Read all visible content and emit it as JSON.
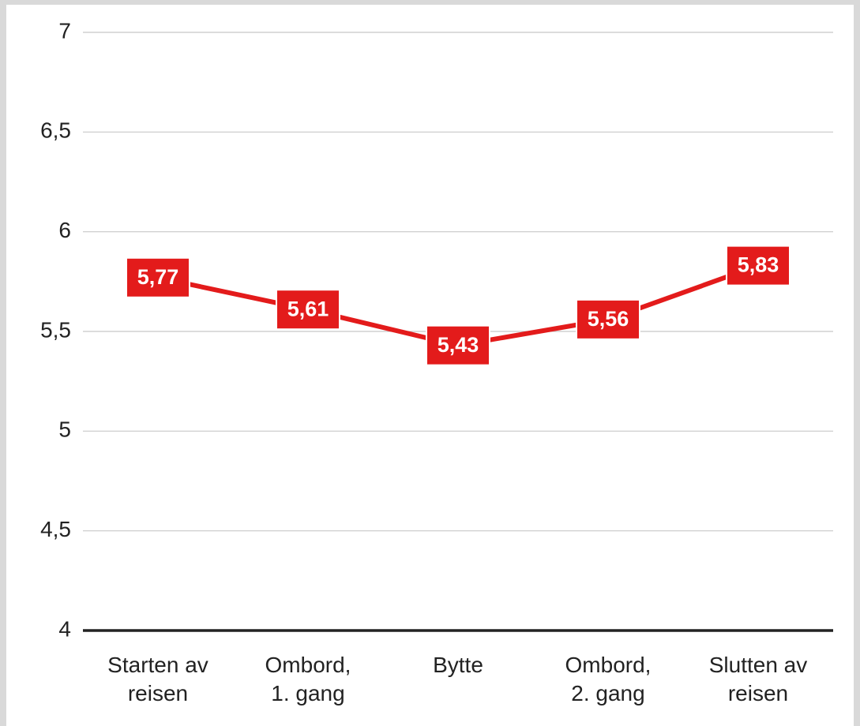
{
  "chart_data": {
    "type": "line",
    "categories": [
      "Starten av\nreisen",
      "Ombord,\n1. gang",
      "Bytte",
      "Ombord,\n2. gang",
      "Slutten av\nreisen"
    ],
    "series": [
      {
        "color": "#e31b1b",
        "values": [
          5.77,
          5.61,
          5.43,
          5.56,
          5.83
        ],
        "value_labels": [
          "5,77",
          "5,61",
          "5,43",
          "5,56",
          "5,83"
        ]
      }
    ],
    "ylim": [
      4,
      7
    ],
    "yticks": [
      4,
      {
        "value": 4.5,
        "label": "4,5"
      },
      5,
      {
        "value": 5.5,
        "label": "5,5"
      },
      6,
      {
        "value": 6.5,
        "label": "6,5"
      },
      7
    ],
    "grid": true
  }
}
